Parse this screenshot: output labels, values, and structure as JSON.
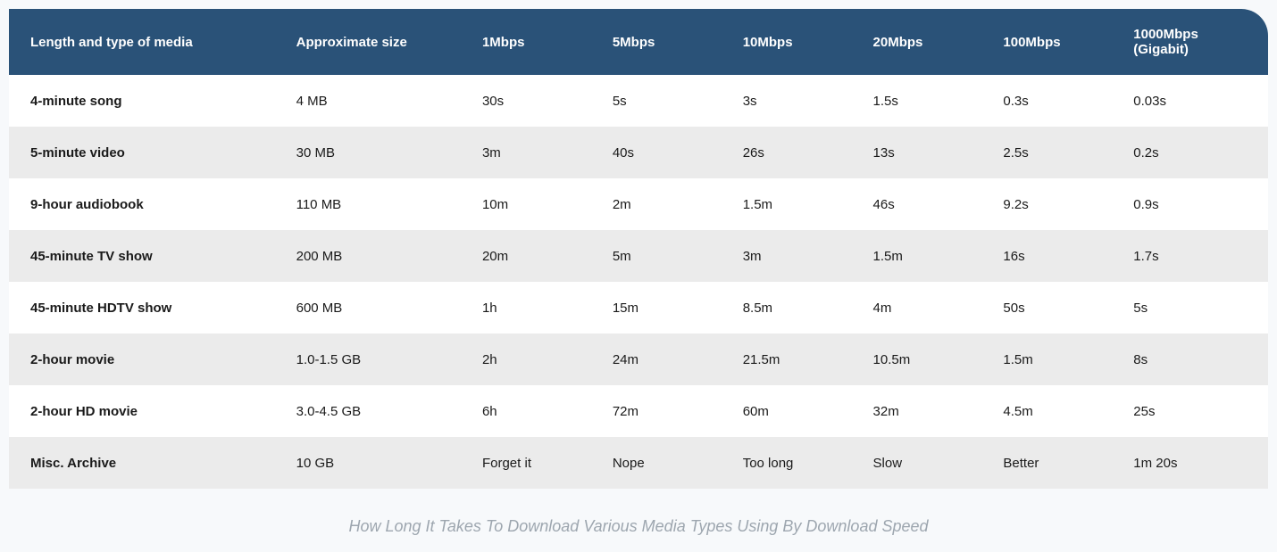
{
  "table": {
    "type": "table",
    "header_bg_color": "#2a5278",
    "header_text_color": "#ffffff",
    "row_odd_bg_color": "#ffffff",
    "row_even_bg_color": "#ebebeb",
    "page_bg_color": "#f7f9fb",
    "body_text_color": "#1a1a1a",
    "header_fontsize": 15,
    "body_fontsize": 15,
    "header_font_weight": 700,
    "first_col_font_weight": 700,
    "header_border_radius_top_right": 30,
    "columns": [
      "Length and type of media",
      "Approximate size",
      "1Mbps",
      "5Mbps",
      "10Mbps",
      "20Mbps",
      "100Mbps",
      "1000Mbps (Gigabit)"
    ],
    "column_widths_pct": [
      22,
      15,
      10.5,
      10.5,
      10.5,
      10.5,
      10.5,
      12
    ],
    "rows": [
      [
        "4-minute song",
        "4 MB",
        "30s",
        "5s",
        "3s",
        "1.5s",
        "0.3s",
        "0.03s"
      ],
      [
        "5-minute video",
        "30 MB",
        "3m",
        "40s",
        "26s",
        "13s",
        "2.5s",
        "0.2s"
      ],
      [
        "9-hour audiobook",
        "110 MB",
        "10m",
        "2m",
        "1.5m",
        "46s",
        "9.2s",
        "0.9s"
      ],
      [
        "45-minute TV show",
        "200 MB",
        "20m",
        "5m",
        "3m",
        "1.5m",
        "16s",
        "1.7s"
      ],
      [
        "45-minute HDTV show",
        "600 MB",
        "1h",
        "15m",
        "8.5m",
        "4m",
        "50s",
        "5s"
      ],
      [
        "2-hour movie",
        "1.0-1.5 GB",
        "2h",
        "24m",
        "21.5m",
        "10.5m",
        "1.5m",
        "8s"
      ],
      [
        "2-hour HD movie",
        "3.0-4.5 GB",
        "6h",
        "72m",
        "60m",
        "32m",
        "4.5m",
        "25s"
      ],
      [
        "Misc. Archive",
        "10 GB",
        "Forget it",
        "Nope",
        "Too long",
        "Slow",
        "Better",
        "1m 20s"
      ]
    ]
  },
  "caption": {
    "text": "How Long It Takes To Download Various Media Types Using By Download Speed",
    "color": "#9da6af",
    "fontsize": 18,
    "font_style": "italic",
    "font_weight": 500
  }
}
